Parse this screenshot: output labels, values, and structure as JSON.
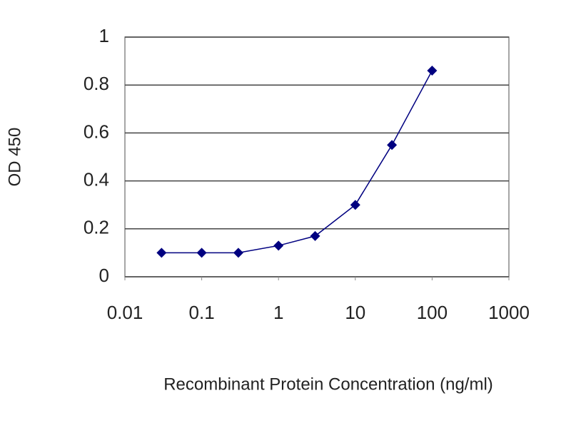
{
  "chart_data": {
    "type": "line",
    "xlabel": "Recombinant Protein Concentration (ng/ml)",
    "ylabel": "OD 450",
    "x": [
      0.03,
      0.1,
      0.3,
      1,
      3,
      10,
      30,
      100
    ],
    "series": [
      {
        "color": "#000080",
        "values": [
          0.1,
          0.1,
          0.1,
          0.13,
          0.17,
          0.3,
          0.55,
          0.86
        ]
      }
    ],
    "xlog": true,
    "xlim": [
      0.01,
      1000
    ],
    "xticks": [
      0.01,
      0.1,
      1,
      10,
      100,
      1000
    ],
    "ylim": [
      0,
      1
    ],
    "yticks": [
      0,
      0.2,
      0.4,
      0.6,
      0.8,
      1
    ],
    "grid": true
  }
}
